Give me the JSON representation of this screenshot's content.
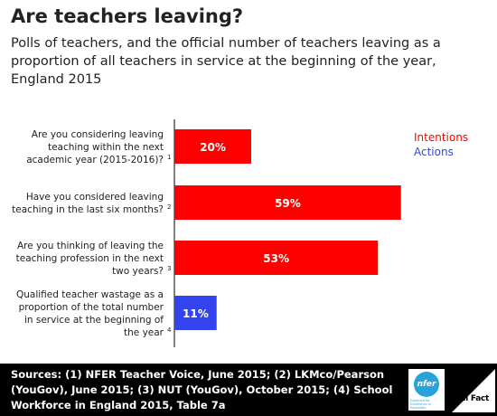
{
  "title": "Are teachers leaving?",
  "subtitle": "Polls of teachers, and the official number of teachers leaving as a proportion of all teachers in service at the beginning of the year, England 2015",
  "footer": {
    "sources": "Sources: (1) NFER Teacher Voice, June 2015; (2) LKMco/Pearson (YouGov), June 2015; (3) NUT (YouGov), October 2015; (4) School Workforce in England 2015, Table 7a",
    "nfer_logo_text": "nfer",
    "nfer_tagline": "Evidence for Excellence in Education",
    "fullfact_logo_text": "Full Fact"
  },
  "chart_data": {
    "type": "bar",
    "orientation": "horizontal",
    "categories": [
      {
        "lines": [
          "Are you considering leaving",
          "teaching within the next",
          "academic year (2015-2016)?"
        ],
        "note": "1"
      },
      {
        "lines": [
          "Have you considered leaving",
          "teaching in the last six months?"
        ],
        "note": "2"
      },
      {
        "lines": [
          "Are you thinking of leaving the",
          "teaching profession in the next",
          "two years?"
        ],
        "note": "3"
      },
      {
        "lines": [
          "Qualified teacher wastage as a",
          "proportion of the total number",
          "in service at the beginning of",
          "the year"
        ],
        "note": "4"
      }
    ],
    "values": [
      20,
      59,
      53,
      11
    ],
    "value_labels": [
      "20%",
      "59%",
      "53%",
      "11%"
    ],
    "series_group": [
      "Intentions",
      "Intentions",
      "Intentions",
      "Actions"
    ],
    "legend": [
      {
        "name": "Intentions",
        "color": "#ff0000"
      },
      {
        "name": "Actions",
        "color": "#3344ee"
      }
    ],
    "xlim": [
      0,
      70
    ],
    "grid": false,
    "legend_position": "top-right"
  }
}
